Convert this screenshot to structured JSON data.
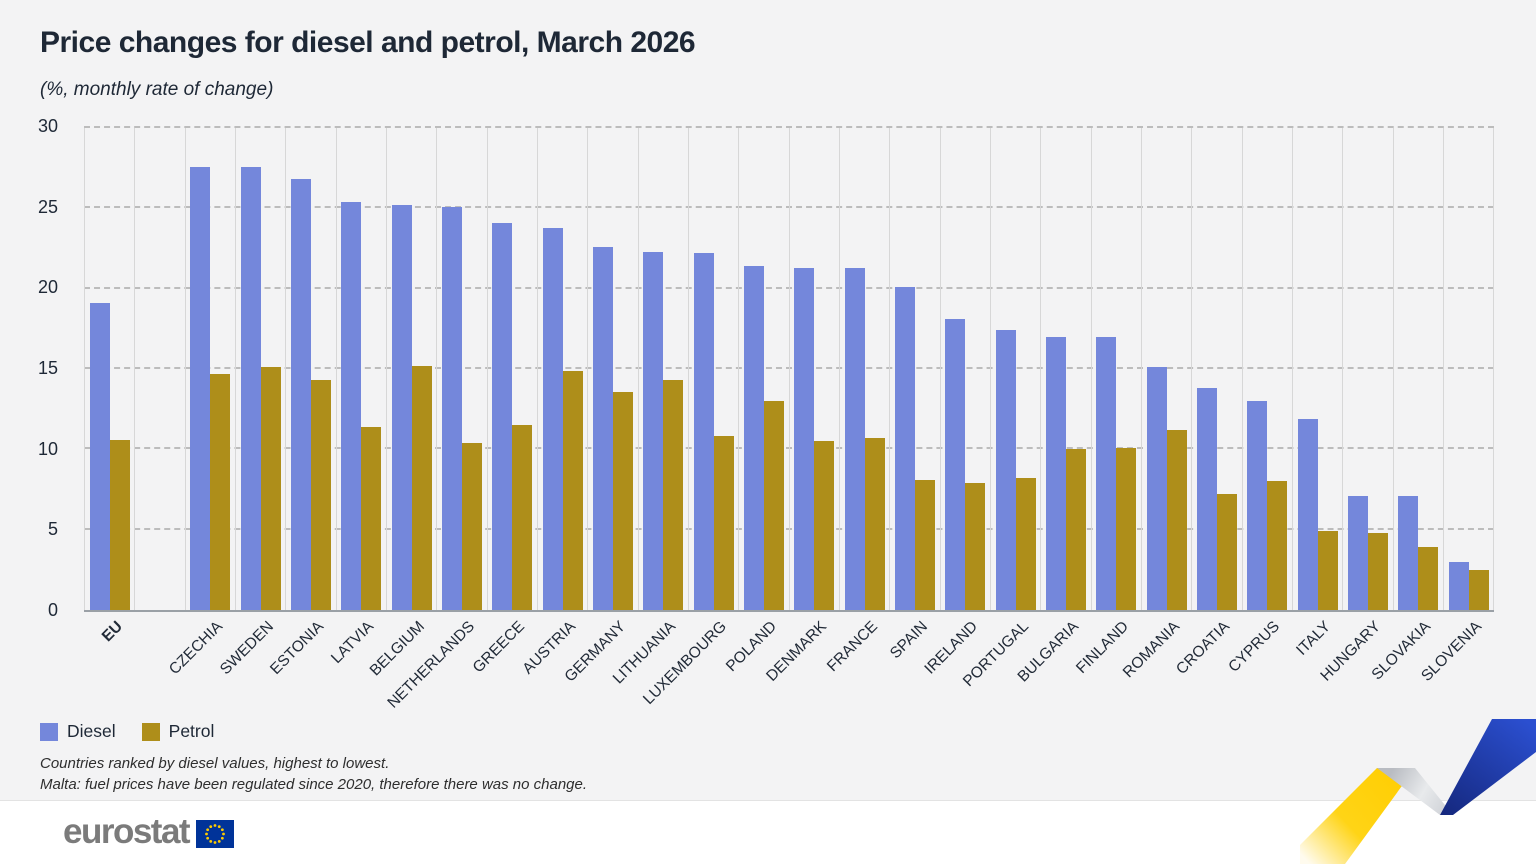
{
  "title": "Price changes for diesel and petrol, March 2026",
  "subtitle": "(%, monthly rate of change)",
  "legend": {
    "items": [
      {
        "label": "Diesel",
        "color": "#7487db"
      },
      {
        "label": "Petrol",
        "color": "#ae8e1a"
      }
    ]
  },
  "footnotes": {
    "line1": "Countries ranked by diesel values, highest to lowest.",
    "line2": "Malta: fuel prices have been regulated since 2020, therefore there was no change."
  },
  "footer": {
    "brand": "eurostat"
  },
  "colors": {
    "diesel": "#7487db",
    "petrol": "#ae8e1a",
    "background": "#f3f3f4",
    "text": "#1e2836",
    "eu_flag_blue": "#003399",
    "eu_flag_stars": "#ffcc00"
  },
  "chart_data": {
    "type": "bar",
    "title": "Price changes for diesel and petrol, March 2026",
    "subtitle": "(%, monthly rate of change)",
    "categories": [
      "EU",
      "CZECHIA",
      "SWEDEN",
      "ESTONIA",
      "LATVIA",
      "BELGIUM",
      "NETHERLANDS",
      "GREECE",
      "AUSTRIA",
      "GERMANY",
      "LITHUANIA",
      "LUXEMBOURG",
      "POLAND",
      "DENMARK",
      "FRANCE",
      "SPAIN",
      "IRELAND",
      "PORTUGAL",
      "BULGARIA",
      "FINLAND",
      "ROMANIA",
      "CROATIA",
      "CYPRUS",
      "ITALY",
      "HUNGARY",
      "SLOVAKIA",
      "SLOVENIA"
    ],
    "series": [
      {
        "name": "Diesel",
        "color": "#7487db",
        "values": [
          19.1,
          27.6,
          27.6,
          26.8,
          25.4,
          25.2,
          25.1,
          24.1,
          23.8,
          22.6,
          22.3,
          22.2,
          21.4,
          21.3,
          21.3,
          20.1,
          18.1,
          17.4,
          17.0,
          17.0,
          15.1,
          13.8,
          13.0,
          11.9,
          7.1,
          7.1,
          3.0
        ]
      },
      {
        "name": "Petrol",
        "color": "#ae8e1a",
        "values": [
          10.6,
          14.7,
          15.1,
          14.3,
          11.4,
          15.2,
          10.4,
          11.5,
          14.9,
          13.6,
          14.3,
          10.8,
          13.0,
          10.5,
          10.7,
          8.1,
          7.9,
          8.2,
          10.0,
          10.1,
          11.2,
          7.2,
          8.0,
          4.9,
          4.8,
          3.9,
          2.5
        ]
      }
    ],
    "ylim": [
      0,
      30
    ],
    "yticks": [
      0,
      5,
      10,
      15,
      20,
      25,
      30
    ],
    "grid": "horizontal-dashed",
    "legend_position": "bottom-left",
    "note": "gap column between EU and country bars"
  }
}
